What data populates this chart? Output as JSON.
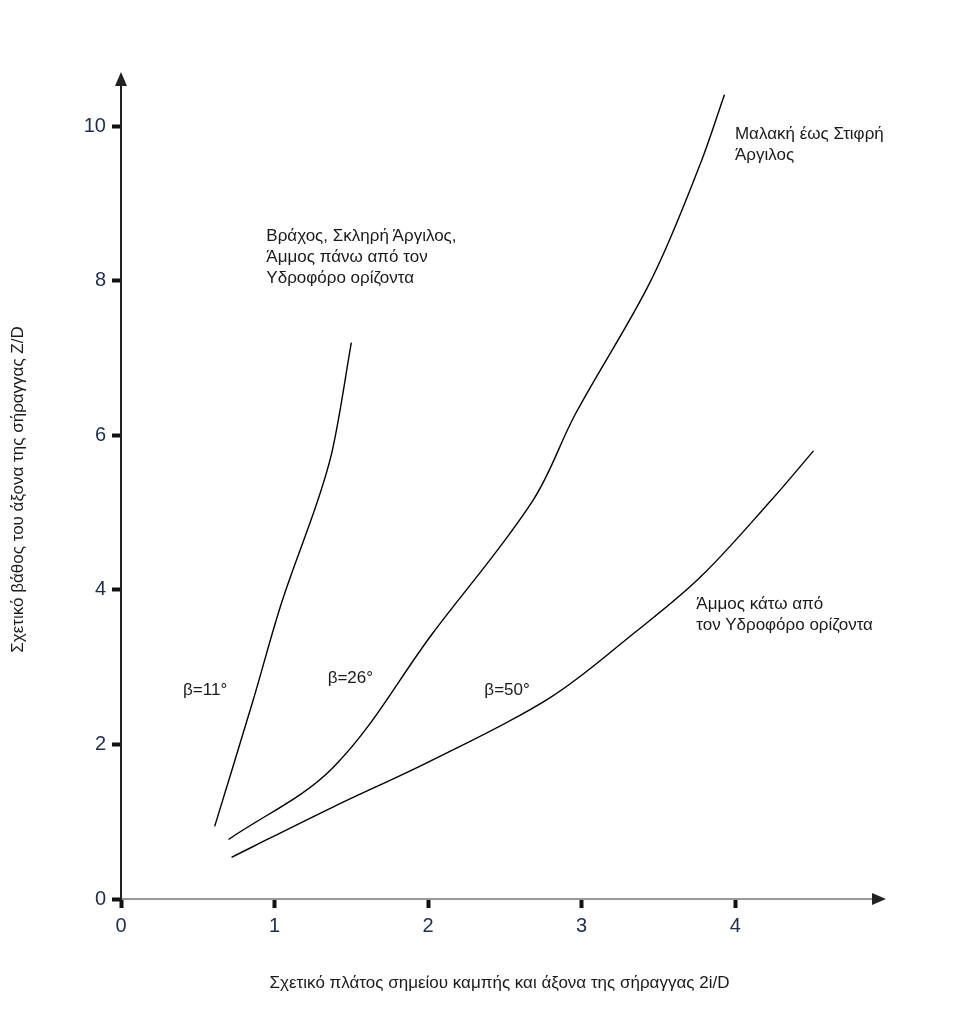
{
  "chart_data": {
    "type": "line",
    "xlabel": "Σχετικό πλάτος σημείου καμπής και άξονα της σήραγγας 2i/D",
    "ylabel": "Σχετικό βάθος του άξονα της σήραγγας Z/D",
    "xlim": [
      0,
      4.93
    ],
    "ylim": [
      0,
      10.6
    ],
    "xticks": [
      0,
      1,
      2,
      3,
      4
    ],
    "yticks": [
      0,
      2,
      4,
      6,
      8,
      10
    ],
    "series": [
      {
        "color": "#000000",
        "x": [
          0.61,
          0.86,
          1.05,
          1.28,
          1.38,
          1.5
        ],
        "values": [
          0.94,
          2.57,
          3.86,
          5.15,
          5.84,
          7.2
        ]
      },
      {
        "color": "#000000",
        "x": [
          0.7,
          1.38,
          2.03,
          2.68,
          2.96,
          3.45,
          3.77,
          3.93
        ],
        "values": [
          0.77,
          1.7,
          3.44,
          5.15,
          6.28,
          8.0,
          9.5,
          10.41
        ]
      },
      {
        "color": "#000000",
        "x": [
          0.72,
          1.38,
          2.03,
          2.79,
          3.34,
          3.77,
          4.23,
          4.51
        ],
        "values": [
          0.54,
          1.19,
          1.8,
          2.6,
          3.44,
          4.16,
          5.15,
          5.8
        ]
      }
    ],
    "annotations": [
      "β=11°",
      "β=26°",
      "β=50°",
      "Βράχος, Σκληρή Άργιλος,\nΆμμος πάνω από τον\nΥδροφόρο ορίζοντα",
      "Μαλακή έως Στιφρή\nΆργιλος",
      "Άμμος κάτω από\nτον Υδροφόρο ορίζοντα"
    ]
  }
}
